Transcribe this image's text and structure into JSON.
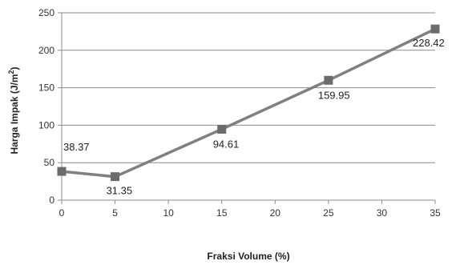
{
  "chart_data": {
    "type": "line",
    "xlabel": "Fraksi Volume (%)",
    "ylabel_main": "Harga Impak (J/m",
    "ylabel_sup": "2",
    "ylabel_end": ")",
    "x": [
      0,
      5,
      15,
      25,
      35
    ],
    "values": [
      38.37,
      31.35,
      94.61,
      159.95,
      228.42
    ],
    "data_labels": [
      "38.37",
      "31.35",
      "94.61",
      "159.95",
      "228.42"
    ],
    "xlim": [
      0,
      35
    ],
    "ylim": [
      0,
      250
    ],
    "x_ticks": [
      0,
      5,
      10,
      15,
      20,
      25,
      30,
      35
    ],
    "y_ticks": [
      0,
      50,
      100,
      150,
      200,
      250
    ],
    "grid": "horizontal",
    "legend": "none",
    "line_color": "#808080",
    "marker": "square"
  }
}
